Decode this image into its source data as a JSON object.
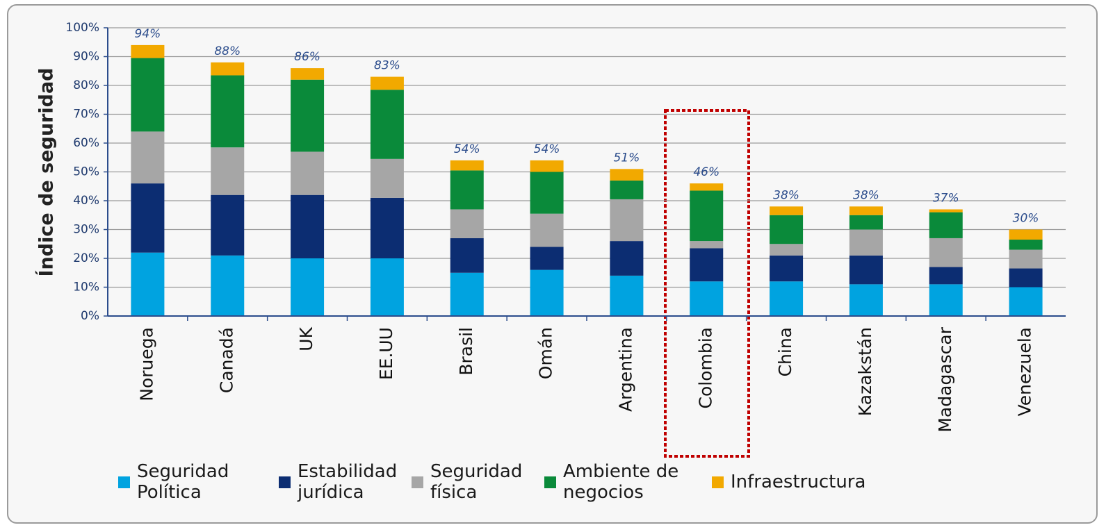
{
  "chart_data": {
    "type": "stacked_bar",
    "y_label": "Índice de seguridad",
    "categories": [
      "Noruega",
      "Canadá",
      "UK",
      "EE.UU",
      "Brasil",
      "Omán",
      "Argentina",
      "Colombia",
      "China",
      "Kazakstán",
      "Madagascar",
      "Venezuela"
    ],
    "series": [
      {
        "name": "Seguridad Política",
        "color": "#00a3e0",
        "values": [
          22,
          21,
          20,
          20,
          15,
          16,
          14,
          12,
          12,
          11,
          11,
          10
        ]
      },
      {
        "name": "Estabilidad jurídica",
        "color": "#0c2d72",
        "values": [
          24,
          21,
          22,
          21,
          12,
          8,
          12,
          11.5,
          9,
          10,
          6,
          6.5
        ]
      },
      {
        "name": "Seguridad física",
        "color": "#a6a6a6",
        "values": [
          18,
          16.5,
          15,
          13.5,
          10,
          11.5,
          14.5,
          2.5,
          4,
          9,
          10,
          6.5
        ]
      },
      {
        "name": "Ambiente de negocios",
        "color": "#0a8a3a",
        "values": [
          25.5,
          25,
          25,
          24,
          13.5,
          14.5,
          6.5,
          17.5,
          10,
          5,
          9,
          3.5
        ]
      },
      {
        "name": "Infraestructura",
        "color": "#f2a900",
        "values": [
          4.5,
          4.5,
          4,
          4.5,
          3.5,
          4,
          4,
          2.5,
          3,
          3,
          1,
          3.5
        ]
      }
    ],
    "totals": [
      94,
      88,
      86,
      83,
      54,
      54,
      51,
      46,
      38,
      38,
      37,
      30
    ],
    "total_labels": [
      "94%",
      "88%",
      "86%",
      "83%",
      "54%",
      "54%",
      "51%",
      "46%",
      "38%",
      "38%",
      "37%",
      "30%"
    ],
    "ylim": [
      0,
      100
    ],
    "yticks": [
      {
        "value": 0,
        "label": "0%"
      },
      {
        "value": 10,
        "label": "10%"
      },
      {
        "value": 20,
        "label": "20%"
      },
      {
        "value": 30,
        "label": "30%"
      },
      {
        "value": 40,
        "label": "40%"
      },
      {
        "value": 50,
        "label": "50%"
      },
      {
        "value": 60,
        "label": "60%"
      },
      {
        "value": 70,
        "label": "70%"
      },
      {
        "value": 80,
        "label": "80%"
      },
      {
        "value": 90,
        "label": "90%"
      },
      {
        "value": 100,
        "label": "100%"
      }
    ],
    "grid": true
  }
}
